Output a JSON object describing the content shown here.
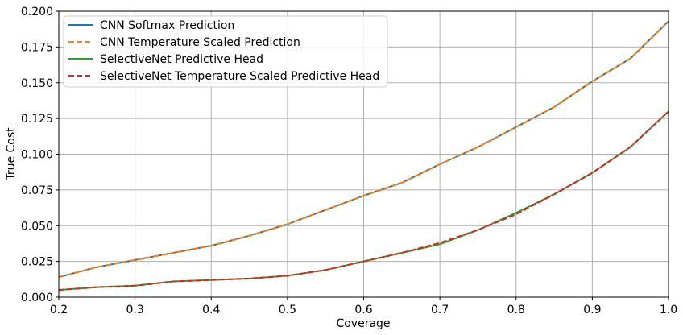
{
  "chart_data": {
    "type": "line",
    "title": "",
    "xlabel": "Coverage",
    "ylabel": "True Cost",
    "xlim": [
      0.2,
      1.0
    ],
    "ylim": [
      0.0,
      0.2
    ],
    "grid": true,
    "legend_position": "top-left",
    "x_ticks": [
      "0.2",
      "0.3",
      "0.4",
      "0.5",
      "0.6",
      "0.7",
      "0.8",
      "0.9",
      "1.0"
    ],
    "y_ticks": [
      "0.000",
      "0.025",
      "0.050",
      "0.075",
      "0.100",
      "0.125",
      "0.150",
      "0.175",
      "0.200"
    ],
    "x": [
      0.2,
      0.25,
      0.3,
      0.35,
      0.4,
      0.45,
      0.5,
      0.55,
      0.6,
      0.65,
      0.7,
      0.75,
      0.8,
      0.85,
      0.9,
      0.95,
      1.0
    ],
    "series": [
      {
        "name": "CNN Softmax Prediction",
        "color": "#1f77b4",
        "style": "solid",
        "values": [
          0.014,
          0.021,
          0.026,
          0.031,
          0.036,
          0.043,
          0.051,
          0.061,
          0.071,
          0.08,
          0.093,
          0.105,
          0.119,
          0.133,
          0.151,
          0.167,
          0.193
        ]
      },
      {
        "name": "CNN Temperature Scaled Prediction",
        "color": "#ff7f0e",
        "style": "dashed",
        "values": [
          0.014,
          0.021,
          0.026,
          0.031,
          0.036,
          0.043,
          0.051,
          0.061,
          0.071,
          0.08,
          0.093,
          0.105,
          0.119,
          0.133,
          0.151,
          0.167,
          0.193
        ]
      },
      {
        "name": "SelectiveNet Predictive Head",
        "color": "#2ca02c",
        "style": "solid",
        "values": [
          0.005,
          0.007,
          0.008,
          0.011,
          0.012,
          0.013,
          0.015,
          0.019,
          0.025,
          0.031,
          0.037,
          0.047,
          0.059,
          0.072,
          0.087,
          0.105,
          0.13
        ]
      },
      {
        "name": "SelectiveNet Temperature Scaled Predictive Head",
        "color": "#d62728",
        "style": "dashed",
        "values": [
          0.005,
          0.007,
          0.008,
          0.011,
          0.012,
          0.013,
          0.015,
          0.019,
          0.025,
          0.031,
          0.038,
          0.047,
          0.058,
          0.072,
          0.087,
          0.105,
          0.13
        ]
      }
    ]
  }
}
